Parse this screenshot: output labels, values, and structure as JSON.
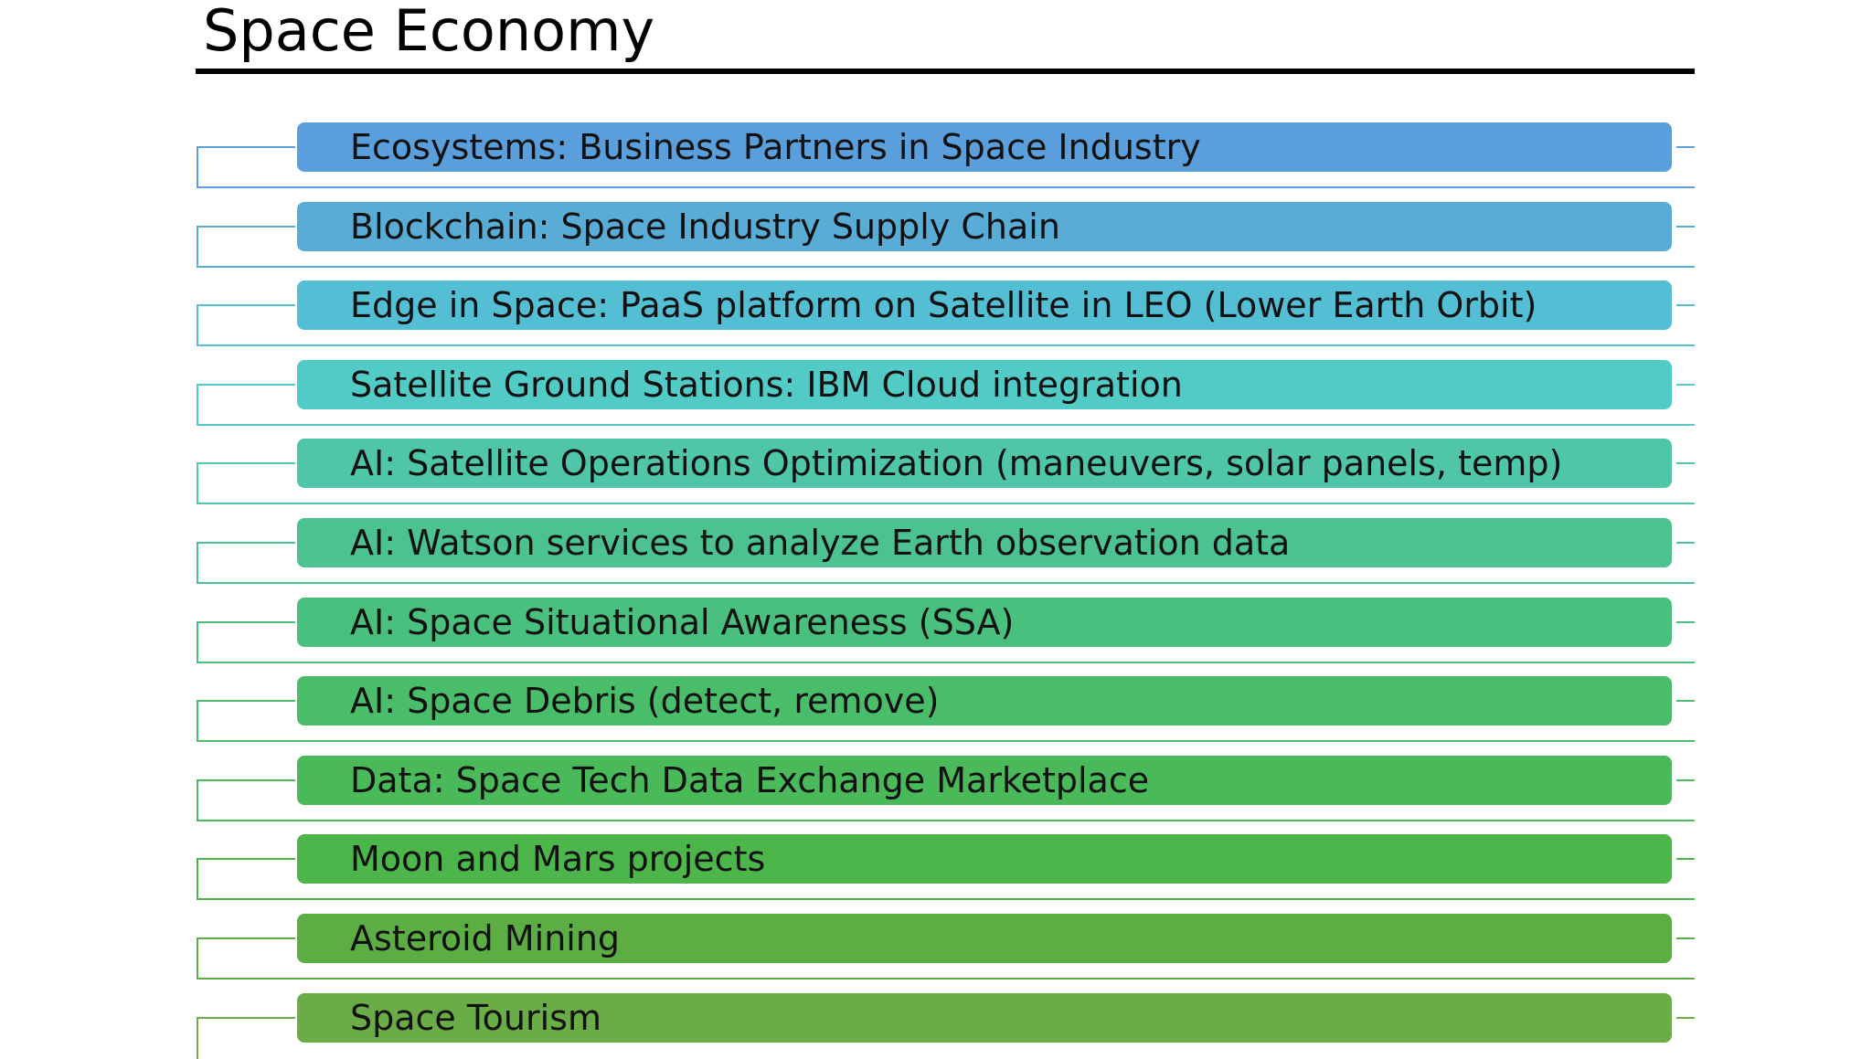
{
  "title": "Space Economy",
  "items": [
    {
      "label": "Ecosystems: Business Partners in Space Industry",
      "color": "#5a9edb"
    },
    {
      "label": "Blockchain: Space Industry Supply Chain",
      "color": "#58acd6"
    },
    {
      "label": "Edge in Space: PaaS platform on Satellite in LEO (Lower Earth Orbit)",
      "color": "#54bed4"
    },
    {
      "label": "Satellite Ground Stations: IBM Cloud integration",
      "color": "#52cac6"
    },
    {
      "label": "AI: Satellite Operations Optimization (maneuvers, solar panels, temp)",
      "color": "#4fc6a8"
    },
    {
      "label": "AI: Watson services to analyze Earth observation data",
      "color": "#4cc291"
    },
    {
      "label": "AI: Space Situational Awareness (SSA)",
      "color": "#4ac07e"
    },
    {
      "label": "AI: Space Debris (detect, remove)",
      "color": "#4abd6a"
    },
    {
      "label": "Data: Space Tech Data Exchange Marketplace",
      "color": "#49b95a"
    },
    {
      "label": "Moon and Mars projects",
      "color": "#4db64a"
    },
    {
      "label": "Asteroid Mining",
      "color": "#5cae44"
    },
    {
      "label": "Space Tourism",
      "color": "#6aac45"
    }
  ]
}
